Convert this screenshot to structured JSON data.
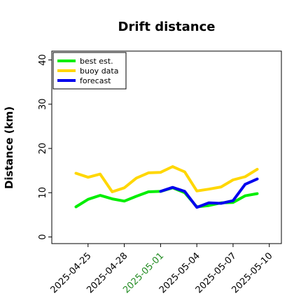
{
  "chart_data": {
    "type": "line",
    "title": "Drift distance",
    "xlabel": "",
    "ylabel": "Distance (km)",
    "ylim": [
      -1.5,
      42
    ],
    "xlim": [
      "2025-04-22",
      "2025-05-11"
    ],
    "yticks": [
      0,
      10,
      20,
      30,
      40
    ],
    "xticks": [
      {
        "date": "2025-04-25",
        "label": "2025-04-25",
        "color": "#000000"
      },
      {
        "date": "2025-04-28",
        "label": "2025-04-28",
        "color": "#000000"
      },
      {
        "date": "2025-05-01",
        "label": "2025-05-01",
        "color": "#228B22"
      },
      {
        "date": "2025-05-04",
        "label": "2025-05-04",
        "color": "#000000"
      },
      {
        "date": "2025-05-07",
        "label": "2025-05-07",
        "color": "#000000"
      },
      {
        "date": "2025-05-10",
        "label": "2025-05-10",
        "color": "#000000"
      }
    ],
    "grid": false,
    "legend_position": "top-left",
    "series": [
      {
        "name": "best est.",
        "color": "#00ee00",
        "points": [
          [
            "2025-04-24",
            6.8
          ],
          [
            "2025-04-25",
            8.5
          ],
          [
            "2025-04-26",
            9.4
          ],
          [
            "2025-04-27",
            8.6
          ],
          [
            "2025-04-28",
            8.1
          ],
          [
            "2025-04-29",
            9.2
          ],
          [
            "2025-04-30",
            10.2
          ],
          [
            "2025-05-01",
            10.3
          ],
          [
            "2025-05-02",
            11.1
          ],
          [
            "2025-05-03",
            10.0
          ],
          [
            "2025-05-04",
            6.8
          ],
          [
            "2025-05-05",
            7.1
          ],
          [
            "2025-05-06",
            7.7
          ],
          [
            "2025-05-07",
            7.8
          ],
          [
            "2025-05-08",
            9.3
          ],
          [
            "2025-05-09",
            9.8
          ]
        ]
      },
      {
        "name": "buoy data",
        "color": "#ffd700",
        "points": [
          [
            "2025-04-24",
            14.4
          ],
          [
            "2025-04-25",
            13.5
          ],
          [
            "2025-04-26",
            14.2
          ],
          [
            "2025-04-27",
            10.2
          ],
          [
            "2025-04-28",
            11.1
          ],
          [
            "2025-04-29",
            13.3
          ],
          [
            "2025-04-30",
            14.5
          ],
          [
            "2025-05-01",
            14.6
          ],
          [
            "2025-05-02",
            15.9
          ],
          [
            "2025-05-03",
            14.7
          ],
          [
            "2025-05-04",
            10.4
          ],
          [
            "2025-05-05",
            10.8
          ],
          [
            "2025-05-06",
            11.3
          ],
          [
            "2025-05-07",
            12.9
          ],
          [
            "2025-05-08",
            13.6
          ],
          [
            "2025-05-09",
            15.3
          ]
        ]
      },
      {
        "name": "forecast",
        "color": "#0000ee",
        "points": [
          [
            "2025-05-01",
            10.3
          ],
          [
            "2025-05-02",
            11.2
          ],
          [
            "2025-05-03",
            10.3
          ],
          [
            "2025-05-04",
            6.7
          ],
          [
            "2025-05-05",
            7.7
          ],
          [
            "2025-05-06",
            7.6
          ],
          [
            "2025-05-07",
            8.2
          ],
          [
            "2025-05-08",
            11.9
          ],
          [
            "2025-05-09",
            13.1
          ]
        ]
      }
    ]
  }
}
